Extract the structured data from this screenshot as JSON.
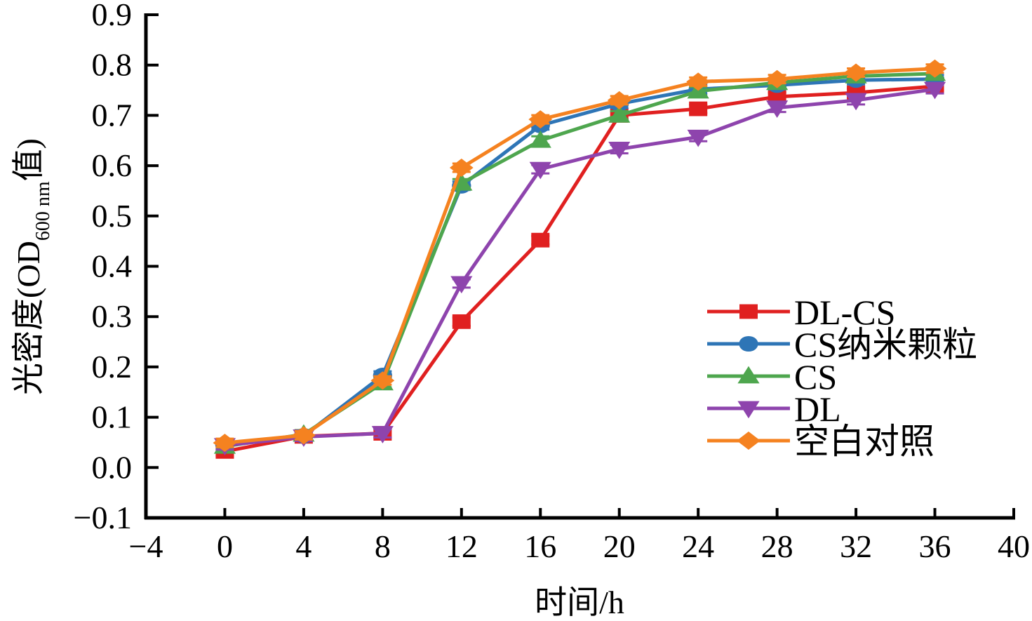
{
  "chart_data": {
    "type": "line",
    "title": "",
    "xlabel": "时间/h",
    "ylabel": {
      "main": "光密度(OD",
      "subscript": "600 nm",
      "suffix": "值)"
    },
    "xlim": [
      -4,
      40
    ],
    "ylim": [
      -0.1,
      0.9
    ],
    "xticks": [
      "−4",
      "0",
      "4",
      "8",
      "12",
      "16",
      "20",
      "24",
      "28",
      "32",
      "36",
      "40"
    ],
    "xtick_values": [
      -4,
      0,
      4,
      8,
      12,
      16,
      20,
      24,
      28,
      32,
      36,
      40
    ],
    "yticks": [
      "−0.1",
      "0.0",
      "0.1",
      "0.2",
      "0.3",
      "0.4",
      "0.5",
      "0.6",
      "0.7",
      "0.8",
      "0.9"
    ],
    "ytick_values": [
      -0.1,
      0.0,
      0.1,
      0.2,
      0.3,
      0.4,
      0.5,
      0.6,
      0.7,
      0.8,
      0.9
    ],
    "grid": false,
    "legend_position": "right",
    "x": [
      0,
      4,
      8,
      12,
      16,
      20,
      24,
      28,
      32,
      36
    ],
    "series": [
      {
        "name": "DL-CS",
        "color": "#e02020",
        "marker": "square",
        "values": [
          0.032,
          0.062,
          0.068,
          0.29,
          0.452,
          0.7,
          0.713,
          0.737,
          0.745,
          0.758
        ]
      },
      {
        "name": "CS纳米颗粒",
        "color": "#2e75b6",
        "marker": "circle",
        "values": [
          0.045,
          0.063,
          0.183,
          0.56,
          0.68,
          0.723,
          0.752,
          0.76,
          0.77,
          0.772
        ]
      },
      {
        "name": "CS",
        "color": "#4ea64e",
        "marker": "triangle-up",
        "values": [
          0.042,
          0.066,
          0.168,
          0.565,
          0.65,
          0.7,
          0.748,
          0.765,
          0.778,
          0.783
        ]
      },
      {
        "name": "DL",
        "color": "#8e44ad",
        "marker": "triangle-down",
        "values": [
          0.044,
          0.061,
          0.068,
          0.366,
          0.593,
          0.633,
          0.657,
          0.715,
          0.73,
          0.752
        ]
      },
      {
        "name": "空白对照",
        "color": "#f58220",
        "marker": "diamond",
        "values": [
          0.049,
          0.064,
          0.173,
          0.596,
          0.692,
          0.73,
          0.767,
          0.772,
          0.785,
          0.793
        ]
      }
    ]
  }
}
